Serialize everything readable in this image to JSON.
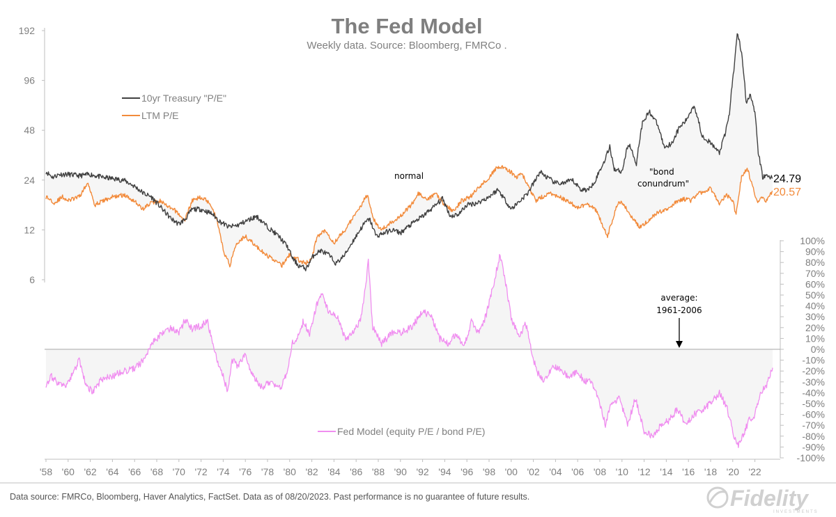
{
  "chart_data": {
    "type": "line",
    "title": "The Fed Model",
    "subtitle": "Weekly data.  Source: Bloomberg, FMRCo .",
    "footer": "Data source: FMRCo, Bloomberg, Haver Analytics, FactSet. Data as of 08/20/2023. Past performance is no guarantee of future results.",
    "logo": "Fidelity",
    "logo_sub": "INVESTMENTS",
    "x_ticks": [
      "'58",
      "'60",
      "'62",
      "'64",
      "'66",
      "'68",
      "'70",
      "'72",
      "'74",
      "'76",
      "'78",
      "'80",
      "'82",
      "'84",
      "'86",
      "'88",
      "'90",
      "'92",
      "'94",
      "'96",
      "'98",
      "'00",
      "'02",
      "'04",
      "'06",
      "'08",
      "'10",
      "'12",
      "'14",
      "'16",
      "'18",
      "'20",
      "'22"
    ],
    "xlim": [
      1957.7,
      1958,
      2023.0
    ],
    "left_axis": {
      "scale": "log2",
      "ticks": [
        "192",
        "96",
        "48",
        "24",
        "12",
        "6"
      ],
      "tick_values": [
        192,
        96,
        48,
        24,
        12,
        6
      ]
    },
    "right_axis": {
      "ticks": [
        "100%",
        "90%",
        "80%",
        "70%",
        "60%",
        "50%",
        "40%",
        "30%",
        "20%",
        "10%",
        "0%",
        "-10%",
        "-20%",
        "-30%",
        "-40%",
        "-50%",
        "-60%",
        "-70%",
        "-80%",
        "-90%",
        "-100%"
      ],
      "tick_values": [
        100,
        90,
        80,
        70,
        60,
        50,
        40,
        30,
        20,
        10,
        0,
        -10,
        -20,
        -30,
        -40,
        -50,
        -60,
        -70,
        -80,
        -90,
        -100
      ]
    },
    "series": [
      {
        "name": "10yr Treasury \"P/E\"",
        "color": "#404040",
        "axis": "left",
        "points": [
          [
            1958.0,
            27
          ],
          [
            1958.6,
            25
          ],
          [
            1959.2,
            26
          ],
          [
            1960.0,
            26
          ],
          [
            1961.0,
            25.5
          ],
          [
            1962.0,
            26
          ],
          [
            1963.0,
            25
          ],
          [
            1964.0,
            24.5
          ],
          [
            1965.0,
            24
          ],
          [
            1966.0,
            22
          ],
          [
            1966.8,
            20
          ],
          [
            1967.5,
            19
          ],
          [
            1968.5,
            16
          ],
          [
            1969.3,
            14
          ],
          [
            1970.0,
            13
          ],
          [
            1970.6,
            14
          ],
          [
            1971.2,
            16
          ],
          [
            1972.0,
            16
          ],
          [
            1973.0,
            15
          ],
          [
            1973.7,
            13.5
          ],
          [
            1974.5,
            12.5
          ],
          [
            1975.3,
            12.8
          ],
          [
            1976.0,
            13.5
          ],
          [
            1977.0,
            14.5
          ],
          [
            1978.0,
            12.5
          ],
          [
            1979.0,
            11
          ],
          [
            1979.8,
            9.5
          ],
          [
            1980.3,
            8
          ],
          [
            1980.8,
            7.3
          ],
          [
            1981.5,
            7
          ],
          [
            1982.2,
            8.5
          ],
          [
            1982.8,
            9
          ],
          [
            1983.5,
            8.5
          ],
          [
            1984.2,
            7.5
          ],
          [
            1985.0,
            8.5
          ],
          [
            1986.0,
            11
          ],
          [
            1986.7,
            13
          ],
          [
            1987.2,
            14
          ],
          [
            1987.8,
            11
          ],
          [
            1988.5,
            11.5
          ],
          [
            1989.3,
            12
          ],
          [
            1990.0,
            11.5
          ],
          [
            1991.0,
            13
          ],
          [
            1992.0,
            14.5
          ],
          [
            1993.0,
            16.5
          ],
          [
            1993.8,
            18.5
          ],
          [
            1994.5,
            14.5
          ],
          [
            1995.3,
            15
          ],
          [
            1996.0,
            17
          ],
          [
            1997.0,
            17.5
          ],
          [
            1998.0,
            19
          ],
          [
            1998.8,
            21
          ],
          [
            1999.5,
            18
          ],
          [
            2000.0,
            16
          ],
          [
            2000.8,
            18
          ],
          [
            2001.5,
            20
          ],
          [
            2002.2,
            24
          ],
          [
            2002.6,
            27
          ],
          [
            2003.2,
            25
          ],
          [
            2004.0,
            23
          ],
          [
            2004.8,
            23
          ],
          [
            2005.5,
            24
          ],
          [
            2006.3,
            21
          ],
          [
            2007.0,
            21
          ],
          [
            2007.6,
            24
          ],
          [
            2008.3,
            30
          ],
          [
            2008.9,
            38
          ],
          [
            2009.3,
            28
          ],
          [
            2010.0,
            27
          ],
          [
            2010.6,
            40
          ],
          [
            2011.3,
            30
          ],
          [
            2011.9,
            55
          ],
          [
            2012.5,
            62
          ],
          [
            2013.2,
            52
          ],
          [
            2013.8,
            38
          ],
          [
            2014.5,
            40
          ],
          [
            2015.2,
            50
          ],
          [
            2015.8,
            55
          ],
          [
            2016.5,
            68
          ],
          [
            2017.2,
            45
          ],
          [
            2018.0,
            40
          ],
          [
            2018.8,
            35
          ],
          [
            2019.3,
            45
          ],
          [
            2019.7,
            60
          ],
          [
            2020.1,
            110
          ],
          [
            2020.4,
            185
          ],
          [
            2020.8,
            140
          ],
          [
            2021.2,
            70
          ],
          [
            2021.6,
            80
          ],
          [
            2022.0,
            60
          ],
          [
            2022.3,
            35
          ],
          [
            2022.7,
            25
          ],
          [
            2023.0,
            25.5
          ],
          [
            2023.6,
            24.79
          ]
        ]
      },
      {
        "name": "LTM P/E",
        "color": "#f28a3a",
        "axis": "left",
        "points": [
          [
            1958.0,
            19
          ],
          [
            1958.8,
            17.5
          ],
          [
            1959.5,
            19
          ],
          [
            1960.0,
            18
          ],
          [
            1961.0,
            19
          ],
          [
            1961.8,
            23
          ],
          [
            1962.4,
            17
          ],
          [
            1963.2,
            18
          ],
          [
            1964.0,
            19
          ],
          [
            1965.0,
            19.5
          ],
          [
            1966.0,
            18
          ],
          [
            1966.7,
            16
          ],
          [
            1967.5,
            17.5
          ],
          [
            1968.3,
            18
          ],
          [
            1969.0,
            16.5
          ],
          [
            1969.8,
            15.5
          ],
          [
            1970.5,
            13.5
          ],
          [
            1971.2,
            18
          ],
          [
            1972.0,
            19
          ],
          [
            1972.8,
            17.5
          ],
          [
            1973.4,
            14
          ],
          [
            1974.0,
            9
          ],
          [
            1974.6,
            7.3
          ],
          [
            1975.2,
            10
          ],
          [
            1976.0,
            11
          ],
          [
            1977.0,
            9.5
          ],
          [
            1977.8,
            8.5
          ],
          [
            1978.5,
            8
          ],
          [
            1979.3,
            7.3
          ],
          [
            1980.0,
            8.5
          ],
          [
            1980.7,
            8
          ],
          [
            1981.4,
            7.5
          ],
          [
            1982.0,
            8
          ],
          [
            1982.5,
            11
          ],
          [
            1983.2,
            12
          ],
          [
            1984.0,
            10
          ],
          [
            1985.0,
            12
          ],
          [
            1986.0,
            15
          ],
          [
            1987.0,
            19.5
          ],
          [
            1987.5,
            14
          ],
          [
            1988.3,
            12
          ],
          [
            1989.3,
            13.5
          ],
          [
            1990.2,
            15
          ],
          [
            1991.0,
            17
          ],
          [
            1991.6,
            20
          ],
          [
            1992.4,
            18
          ],
          [
            1993.2,
            20
          ],
          [
            1994.0,
            17
          ],
          [
            1994.8,
            15.5
          ],
          [
            1995.5,
            18
          ],
          [
            1996.3,
            19
          ],
          [
            1997.2,
            22
          ],
          [
            1998.0,
            25
          ],
          [
            1998.8,
            29
          ],
          [
            1999.6,
            28
          ],
          [
            2000.5,
            25
          ],
          [
            2001.0,
            26
          ],
          [
            2001.7,
            21
          ],
          [
            2002.2,
            18
          ],
          [
            2002.8,
            19
          ],
          [
            2003.5,
            20
          ],
          [
            2004.3,
            19
          ],
          [
            2005.0,
            18
          ],
          [
            2006.0,
            16.5
          ],
          [
            2007.0,
            17
          ],
          [
            2007.6,
            16
          ],
          [
            2008.2,
            13
          ],
          [
            2008.7,
            11
          ],
          [
            2009.2,
            14
          ],
          [
            2009.7,
            18
          ],
          [
            2010.3,
            16.5
          ],
          [
            2011.0,
            14
          ],
          [
            2011.6,
            12.5
          ],
          [
            2012.3,
            13.5
          ],
          [
            2013.0,
            15
          ],
          [
            2014.0,
            16
          ],
          [
            2014.8,
            17.5
          ],
          [
            2015.5,
            18.5
          ],
          [
            2016.2,
            18
          ],
          [
            2017.0,
            20
          ],
          [
            2018.0,
            21.5
          ],
          [
            2018.8,
            17
          ],
          [
            2019.4,
            19.5
          ],
          [
            2020.0,
            18
          ],
          [
            2020.3,
            14.5
          ],
          [
            2020.8,
            25
          ],
          [
            2021.3,
            28
          ],
          [
            2021.8,
            22
          ],
          [
            2022.2,
            17.5
          ],
          [
            2022.6,
            19
          ],
          [
            2023.0,
            18
          ],
          [
            2023.6,
            20.57
          ]
        ]
      },
      {
        "name": "Fed Model (equity P/E / bond P/E)",
        "color": "#f08ef0",
        "axis": "right",
        "points": [
          [
            1958.0,
            -32
          ],
          [
            1958.5,
            -25
          ],
          [
            1959.0,
            -30
          ],
          [
            1959.7,
            -35
          ],
          [
            1960.3,
            -25
          ],
          [
            1961.0,
            -10
          ],
          [
            1961.5,
            -30
          ],
          [
            1962.2,
            -40
          ],
          [
            1963.0,
            -28
          ],
          [
            1964.0,
            -25
          ],
          [
            1965.0,
            -20
          ],
          [
            1966.0,
            -18
          ],
          [
            1966.8,
            -10
          ],
          [
            1967.5,
            5
          ],
          [
            1968.5,
            15
          ],
          [
            1969.3,
            20
          ],
          [
            1970.0,
            15
          ],
          [
            1970.6,
            28
          ],
          [
            1971.2,
            18
          ],
          [
            1972.0,
            22
          ],
          [
            1972.6,
            25
          ],
          [
            1973.3,
            -5
          ],
          [
            1974.0,
            -25
          ],
          [
            1974.4,
            -40
          ],
          [
            1974.8,
            -10
          ],
          [
            1975.3,
            -15
          ],
          [
            1976.0,
            -5
          ],
          [
            1976.7,
            -25
          ],
          [
            1977.5,
            -35
          ],
          [
            1978.3,
            -30
          ],
          [
            1979.2,
            -35
          ],
          [
            1979.8,
            -20
          ],
          [
            1980.2,
            5
          ],
          [
            1980.7,
            10
          ],
          [
            1981.2,
            25
          ],
          [
            1981.8,
            15
          ],
          [
            1982.4,
            40
          ],
          [
            1982.9,
            50
          ],
          [
            1983.5,
            35
          ],
          [
            1984.3,
            30
          ],
          [
            1985.0,
            10
          ],
          [
            1985.8,
            15
          ],
          [
            1986.5,
            30
          ],
          [
            1987.1,
            80
          ],
          [
            1987.5,
            20
          ],
          [
            1988.3,
            5
          ],
          [
            1989.2,
            15
          ],
          [
            1990.0,
            15
          ],
          [
            1991.0,
            20
          ],
          [
            1992.0,
            35
          ],
          [
            1992.8,
            30
          ],
          [
            1993.5,
            10
          ],
          [
            1994.3,
            5
          ],
          [
            1995.0,
            15
          ],
          [
            1995.7,
            2
          ],
          [
            1996.4,
            25
          ],
          [
            1997.0,
            15
          ],
          [
            1997.7,
            30
          ],
          [
            1998.4,
            60
          ],
          [
            1999.0,
            88
          ],
          [
            1999.5,
            60
          ],
          [
            2000.0,
            30
          ],
          [
            2000.7,
            10
          ],
          [
            2001.3,
            25
          ],
          [
            2001.8,
            0
          ],
          [
            2002.3,
            -20
          ],
          [
            2003.0,
            -30
          ],
          [
            2003.8,
            -15
          ],
          [
            2004.5,
            -20
          ],
          [
            2005.3,
            -25
          ],
          [
            2006.0,
            -20
          ],
          [
            2006.6,
            -30
          ],
          [
            2007.3,
            -30
          ],
          [
            2008.0,
            -50
          ],
          [
            2008.5,
            -70
          ],
          [
            2009.0,
            -50
          ],
          [
            2009.8,
            -45
          ],
          [
            2010.5,
            -70
          ],
          [
            2011.2,
            -45
          ],
          [
            2012.0,
            -75
          ],
          [
            2012.8,
            -80
          ],
          [
            2013.5,
            -70
          ],
          [
            2014.3,
            -65
          ],
          [
            2015.0,
            -55
          ],
          [
            2015.8,
            -70
          ],
          [
            2016.5,
            -60
          ],
          [
            2017.3,
            -55
          ],
          [
            2018.0,
            -50
          ],
          [
            2018.8,
            -40
          ],
          [
            2019.5,
            -55
          ],
          [
            2020.0,
            -75
          ],
          [
            2020.4,
            -90
          ],
          [
            2020.9,
            -80
          ],
          [
            2021.5,
            -65
          ],
          [
            2022.0,
            -60
          ],
          [
            2022.5,
            -40
          ],
          [
            2023.0,
            -35
          ],
          [
            2023.6,
            -17
          ]
        ]
      }
    ],
    "end_labels": [
      {
        "series": 0,
        "text": "24.79",
        "color": "#000000"
      },
      {
        "series": 1,
        "text": "20.57",
        "color": "#f28a3a"
      }
    ],
    "annotations": {
      "normal": "normal",
      "bond_conundrum_line1": "\"bond",
      "bond_conundrum_line2": "conundrum\"",
      "average_line1": "average:",
      "average_line2": "1961-2006"
    },
    "legend": {
      "treasury": "10yr Treasury \"P/E\"",
      "ltm": "LTM P/E",
      "fed": "Fed Model (equity P/E / bond P/E)"
    }
  }
}
